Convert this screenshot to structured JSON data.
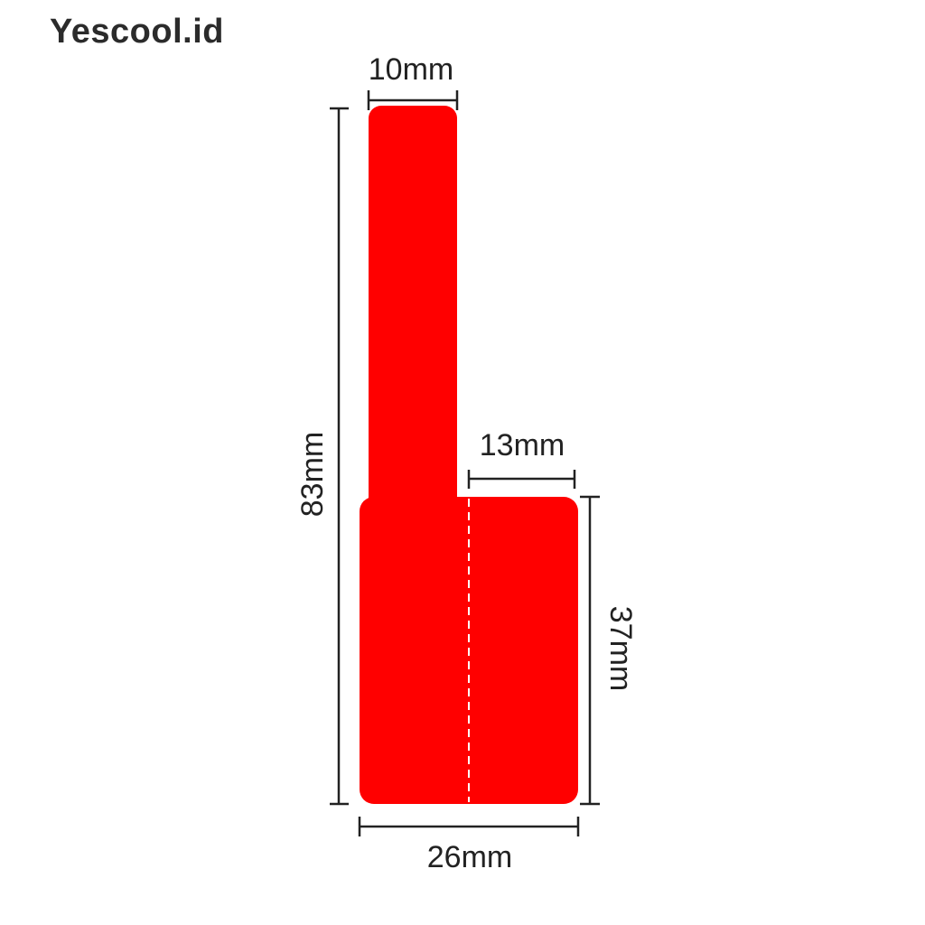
{
  "watermark": "Yescool.id",
  "colors": {
    "label_fill": "#ff0000",
    "dimension": "#222222",
    "fold_line": "#ffffff"
  },
  "dimensions": {
    "stem_width": "10mm",
    "total_height": "83mm",
    "flap_width": "13mm",
    "body_height": "37mm",
    "total_width": "26mm"
  }
}
